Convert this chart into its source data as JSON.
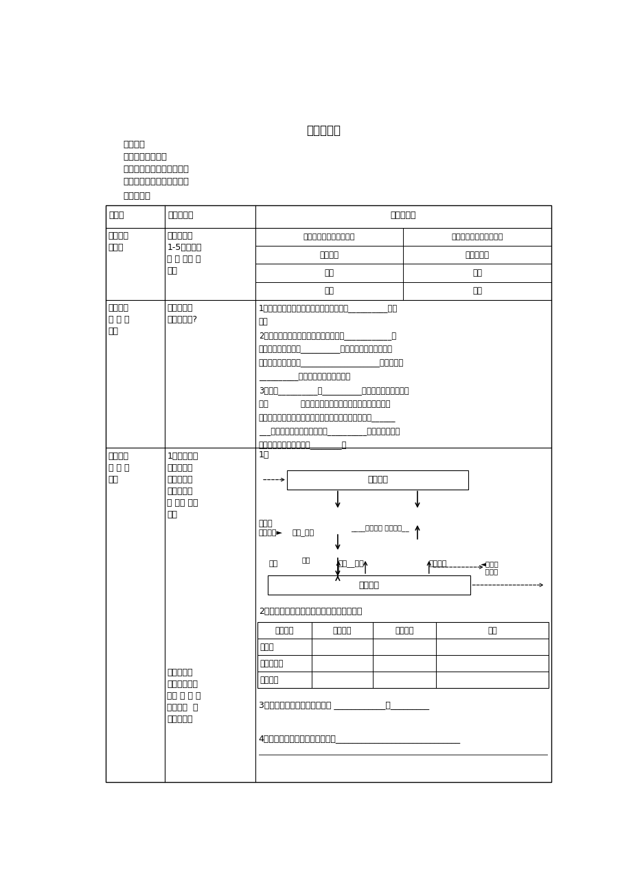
{
  "title": "血糖的调节",
  "bg_color": "#ffffff",
  "text_color": "#000000",
  "header_lines": [
    "学习目标",
    "血糖的平衡及意义",
    "血糖平衡的调节（重难点）",
    "糖尿病的成因及其防治措施",
    "学习过程："
  ],
  "fig_w": 9.2,
  "fig_h": 13.02,
  "dpi": 100
}
